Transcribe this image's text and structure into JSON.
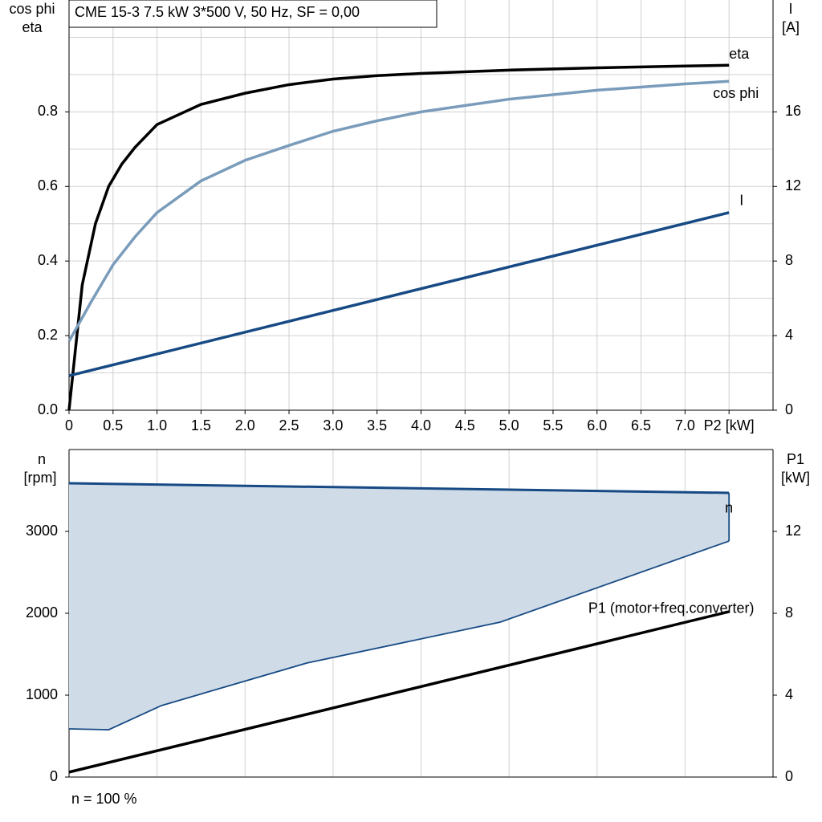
{
  "chart_data": [
    {
      "type": "line",
      "title": "CME 15-3   7.5 kW   3*500 V, 50 Hz, SF = 0,00",
      "y_label": [
        "cos phi",
        "eta"
      ],
      "y2_label": [
        "I",
        "[A]"
      ],
      "xlim": [
        0,
        8
      ],
      "xticks": [
        0,
        0.5,
        {
          "value": 1,
          "label": "1.0"
        },
        1.5,
        {
          "value": 2,
          "label": "2.0"
        },
        2.5,
        {
          "value": 3,
          "label": "3.0"
        },
        3.5,
        {
          "value": 4,
          "label": "4.0"
        },
        4.5,
        {
          "value": 5,
          "label": "5.0"
        },
        5.5,
        {
          "value": 6,
          "label": "6.0"
        },
        6.5,
        {
          "value": 7,
          "label": "7.0"
        },
        {
          "value": 7.5,
          "label": "P2 [kW]"
        }
      ],
      "ylim": [
        0,
        1.1
      ],
      "yticks": [
        {
          "value": 0,
          "label": "0.0"
        },
        0.2,
        0.4,
        0.6,
        0.8
      ],
      "yminor": [
        0.1,
        0.3,
        0.5,
        0.7,
        0.9,
        1.0
      ],
      "y2lim": [
        0,
        22
      ],
      "y2ticks": [
        0,
        4,
        8,
        12,
        16
      ],
      "grid": true,
      "series": [
        {
          "name": "eta",
          "color": "#000000",
          "x": [
            0,
            0.15,
            0.3,
            0.45,
            0.6,
            0.75,
            1,
            1.5,
            2,
            2.5,
            3,
            3.5,
            4,
            5,
            6,
            7,
            7.5
          ],
          "values": [
            0,
            0.336,
            0.5,
            0.6,
            0.66,
            0.705,
            0.766,
            0.82,
            0.85,
            0.873,
            0.888,
            0.897,
            0.903,
            0.912,
            0.918,
            0.923,
            0.925
          ]
        },
        {
          "name": "cos phi",
          "color": "#7a9cbb",
          "x": [
            0,
            0.25,
            0.5,
            0.75,
            1,
            1.5,
            2,
            2.5,
            3,
            3.5,
            4,
            5,
            6,
            7,
            7.5
          ],
          "values": [
            0.185,
            0.29,
            0.39,
            0.465,
            0.53,
            0.615,
            0.67,
            0.71,
            0.748,
            0.776,
            0.8,
            0.834,
            0.858,
            0.875,
            0.882
          ]
        },
        {
          "name": "I",
          "color": "#174a84",
          "axis": "y2",
          "x": [
            0,
            7.5
          ],
          "values": [
            1.85,
            10.6
          ]
        }
      ]
    },
    {
      "type": "area",
      "y_label": [
        "n",
        "[rpm]"
      ],
      "y2_label": [
        "P1",
        "[kW]"
      ],
      "footnote": "n = 100 %",
      "xlim": [
        0,
        8
      ],
      "xgrid": [
        1,
        2,
        3,
        4,
        5,
        6,
        7
      ],
      "ylim": [
        0,
        4000
      ],
      "yticks": [
        0,
        1000,
        2000,
        3000
      ],
      "y2lim": [
        0,
        16
      ],
      "y2ticks": [
        0,
        4,
        8,
        12
      ],
      "series": [
        {
          "name": "n",
          "color": "#174a84",
          "fill": "#cfdbe7",
          "x": [
            0,
            7.5
          ],
          "values": [
            3588,
            3471
          ],
          "lower": {
            "x": [
              0,
              0.45,
              1.05,
              2.7,
              4.9,
              7.5
            ],
            "values": [
              588,
              578,
              873,
              1392,
              1892,
              2882
            ]
          }
        },
        {
          "name": "P1 (motor+freq.converter)",
          "color": "#000000",
          "axis": "y2",
          "x": [
            0,
            7.5
          ],
          "values": [
            0.24,
            8.08
          ]
        }
      ]
    }
  ]
}
